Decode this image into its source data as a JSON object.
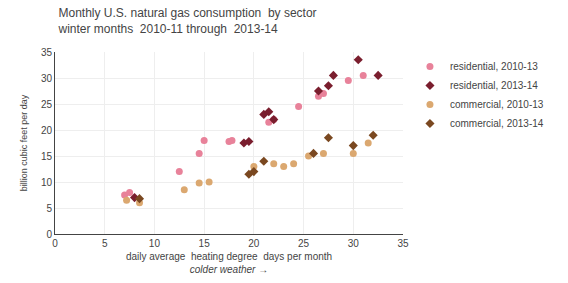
{
  "chart_data": {
    "type": "scatter",
    "title": "Monthly U.S. natural gas consumption  by sector",
    "subtitle": "winter months  2010-11 through  2013-14",
    "ylabel": "billion cubic feet per day",
    "xlabel": "daily average  heating degree  days per month",
    "annotations": [
      "colder weather →"
    ],
    "xlim": [
      0,
      35
    ],
    "ylim": [
      0,
      35
    ],
    "xticks": [
      0,
      5,
      10,
      15,
      20,
      25,
      30,
      35
    ],
    "yticks": [
      0,
      5,
      10,
      15,
      20,
      25,
      30,
      35
    ],
    "grid": true,
    "legend": "right",
    "series": [
      {
        "name": "residential, 2010-13",
        "color": "#e8829a",
        "marker": "circle",
        "x": [
          7.0,
          7.5,
          12.5,
          14.5,
          15.0,
          17.5,
          17.8,
          21.5,
          22.0,
          24.5,
          26.5,
          27.0,
          29.5,
          31.0
        ],
        "values": [
          7.5,
          8.0,
          12.0,
          15.5,
          18.0,
          17.8,
          18.0,
          21.5,
          22.0,
          24.5,
          26.5,
          27.0,
          29.5,
          30.5
        ]
      },
      {
        "name": "residential, 2013-14",
        "color": "#7a1e2e",
        "marker": "diamond",
        "x": [
          8.0,
          19.0,
          19.5,
          21.0,
          21.5,
          22.0,
          26.5,
          27.5,
          28.0,
          30.5,
          32.5
        ],
        "values": [
          7.0,
          17.5,
          17.8,
          23.0,
          23.5,
          22.0,
          27.5,
          28.5,
          30.5,
          33.5,
          30.5
        ]
      },
      {
        "name": "commercial, 2010-13",
        "color": "#dba870",
        "marker": "circle",
        "x": [
          7.2,
          8.5,
          13.0,
          14.5,
          15.5,
          20.0,
          22.0,
          23.0,
          24.0,
          25.5,
          27.0,
          30.0,
          31.5
        ],
        "values": [
          6.5,
          6.0,
          8.5,
          9.8,
          10.0,
          13.0,
          13.5,
          13.0,
          13.5,
          15.0,
          15.5,
          15.5,
          17.5
        ]
      },
      {
        "name": "commercial, 2013-14",
        "color": "#7a4820",
        "marker": "diamond",
        "x": [
          8.5,
          19.5,
          20.0,
          21.0,
          26.0,
          27.5,
          30.0,
          32.0
        ],
        "values": [
          6.8,
          11.5,
          12.0,
          14.0,
          15.5,
          18.5,
          17.0,
          19.0
        ]
      }
    ]
  }
}
